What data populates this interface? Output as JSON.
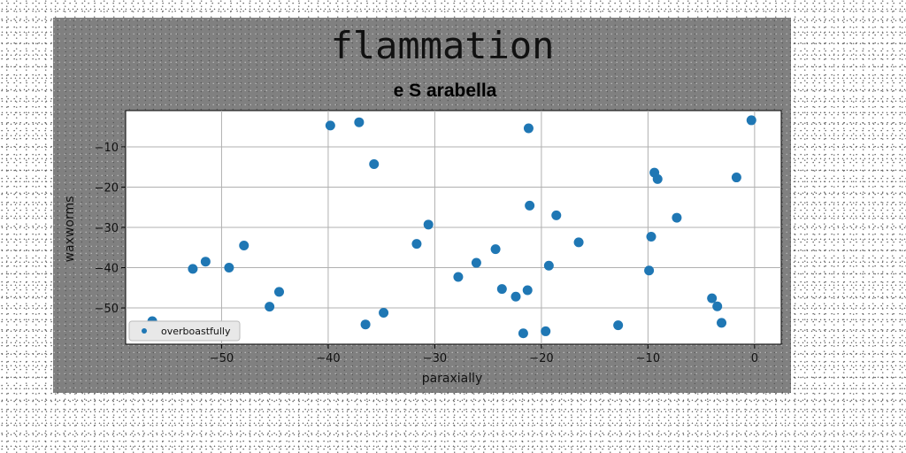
{
  "chart_data": {
    "type": "scatter",
    "suptitle": "flammation",
    "title": "e S arabella",
    "xlabel": "paraxially",
    "ylabel": "waxworms",
    "xlim": [
      -59,
      2.5
    ],
    "ylim": [
      -59,
      -1
    ],
    "xticks": [
      -50,
      -40,
      -30,
      -20,
      -10,
      0
    ],
    "yticks": [
      -10,
      -20,
      -30,
      -40,
      -50
    ],
    "grid": true,
    "legend_position": "lower-left",
    "color": "#1f77b4",
    "series": [
      {
        "name": "overboastfully",
        "points": [
          [
            -56.5,
            -53.3
          ],
          [
            -52.7,
            -40.3
          ],
          [
            -51.5,
            -38.5
          ],
          [
            -49.3,
            -40.0
          ],
          [
            -47.9,
            -34.5
          ],
          [
            -45.5,
            -49.7
          ],
          [
            -44.6,
            -46.0
          ],
          [
            -39.8,
            -4.7
          ],
          [
            -37.1,
            -3.9
          ],
          [
            -36.5,
            -54.1
          ],
          [
            -35.7,
            -14.3
          ],
          [
            -34.8,
            -51.2
          ],
          [
            -31.7,
            -34.1
          ],
          [
            -30.6,
            -29.3
          ],
          [
            -27.8,
            -42.3
          ],
          [
            -26.1,
            -38.8
          ],
          [
            -24.3,
            -35.4
          ],
          [
            -23.7,
            -45.3
          ],
          [
            -22.4,
            -47.2
          ],
          [
            -21.7,
            -56.3
          ],
          [
            -21.3,
            -45.6
          ],
          [
            -21.2,
            -5.4
          ],
          [
            -21.1,
            -24.6
          ],
          [
            -19.6,
            -55.8
          ],
          [
            -19.3,
            -39.5
          ],
          [
            -18.6,
            -27.0
          ],
          [
            -16.5,
            -33.7
          ],
          [
            -12.8,
            -54.3
          ],
          [
            -9.9,
            -40.7
          ],
          [
            -9.7,
            -32.3
          ],
          [
            -9.4,
            -16.4
          ],
          [
            -9.1,
            -18.0
          ],
          [
            -7.3,
            -27.6
          ],
          [
            -4.0,
            -47.6
          ],
          [
            -3.5,
            -49.6
          ],
          [
            -3.1,
            -53.7
          ],
          [
            -1.7,
            -17.6
          ],
          [
            -0.3,
            -3.4
          ]
        ]
      }
    ]
  }
}
